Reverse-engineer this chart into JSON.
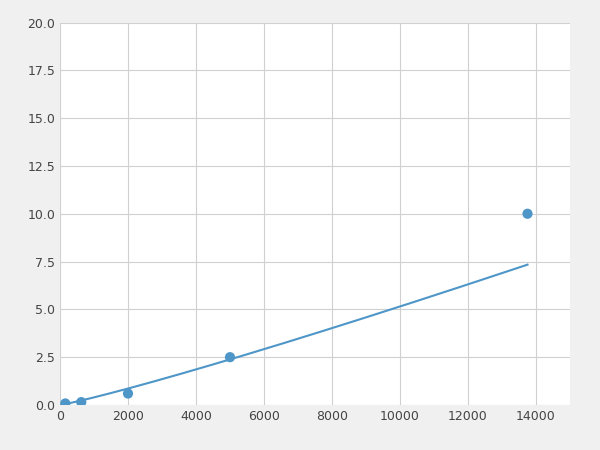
{
  "x": [
    156.25,
    625,
    2000,
    5000,
    13750
  ],
  "y": [
    0.08,
    0.15,
    0.6,
    2.5,
    10.0
  ],
  "line_color": "#4e96c8",
  "marker_color": "#4e96c8",
  "marker_size": 6,
  "xlim": [
    0,
    15000
  ],
  "ylim": [
    0,
    20
  ],
  "yticks": [
    0.0,
    2.5,
    5.0,
    7.5,
    10.0,
    12.5,
    15.0,
    17.5,
    20.0
  ],
  "xticks": [
    0,
    2000,
    4000,
    6000,
    8000,
    10000,
    12000,
    14000
  ],
  "grid_color": "#d0d0d0",
  "background_color": "#ffffff",
  "fig_background": "#f0f0f0"
}
